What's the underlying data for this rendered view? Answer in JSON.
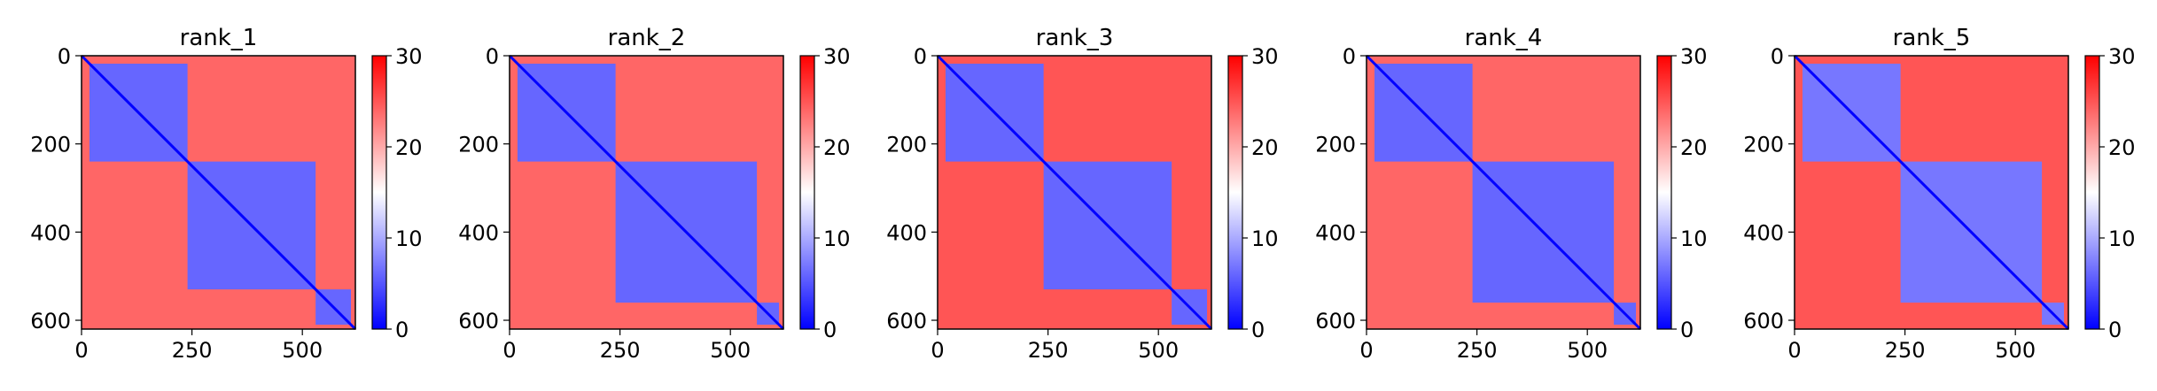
{
  "chart_data": [
    {
      "type": "heatmap",
      "title": "rank_1",
      "xlabel": "",
      "ylabel": "",
      "xlim": [
        0,
        620
      ],
      "ylim": [
        620,
        0
      ],
      "x_ticks": [
        0,
        250,
        500
      ],
      "y_ticks": [
        0,
        200,
        400,
        600
      ],
      "colorbar": {
        "ticks": [
          0,
          10,
          20,
          30
        ],
        "range": [
          0,
          30
        ]
      },
      "blocks": [
        [
          18,
          240
        ],
        [
          240,
          530
        ],
        [
          530,
          610
        ]
      ],
      "intra_block_value": 6,
      "inter_block_value": 24,
      "diagonal_value": 0
    },
    {
      "type": "heatmap",
      "title": "rank_2",
      "xlabel": "",
      "ylabel": "",
      "xlim": [
        0,
        620
      ],
      "ylim": [
        620,
        0
      ],
      "x_ticks": [
        0,
        250,
        500
      ],
      "y_ticks": [
        0,
        200,
        400,
        600
      ],
      "colorbar": {
        "ticks": [
          0,
          10,
          20,
          30
        ],
        "range": [
          0,
          30
        ]
      },
      "blocks": [
        [
          18,
          240
        ],
        [
          240,
          560
        ],
        [
          560,
          610
        ]
      ],
      "intra_block_value": 6,
      "inter_block_value": 24,
      "diagonal_value": 0
    },
    {
      "type": "heatmap",
      "title": "rank_3",
      "xlabel": "",
      "ylabel": "",
      "xlim": [
        0,
        620
      ],
      "ylim": [
        620,
        0
      ],
      "x_ticks": [
        0,
        250,
        500
      ],
      "y_ticks": [
        0,
        200,
        400,
        600
      ],
      "colorbar": {
        "ticks": [
          0,
          10,
          20,
          30
        ],
        "range": [
          0,
          30
        ]
      },
      "blocks": [
        [
          18,
          240
        ],
        [
          240,
          530
        ],
        [
          530,
          610
        ]
      ],
      "intra_block_value": 6,
      "inter_block_value": 25,
      "diagonal_value": 0
    },
    {
      "type": "heatmap",
      "title": "rank_4",
      "xlabel": "",
      "ylabel": "",
      "xlim": [
        0,
        620
      ],
      "ylim": [
        620,
        0
      ],
      "x_ticks": [
        0,
        250,
        500
      ],
      "y_ticks": [
        0,
        200,
        400,
        600
      ],
      "colorbar": {
        "ticks": [
          0,
          10,
          20,
          30
        ],
        "range": [
          0,
          30
        ]
      },
      "blocks": [
        [
          18,
          240
        ],
        [
          240,
          560
        ],
        [
          560,
          610
        ]
      ],
      "intra_block_value": 6,
      "inter_block_value": 24,
      "diagonal_value": 0
    },
    {
      "type": "heatmap",
      "title": "rank_5",
      "xlabel": "",
      "ylabel": "",
      "xlim": [
        0,
        620
      ],
      "ylim": [
        620,
        0
      ],
      "x_ticks": [
        0,
        250,
        500
      ],
      "y_ticks": [
        0,
        200,
        400,
        600
      ],
      "colorbar": {
        "ticks": [
          0,
          10,
          20,
          30
        ],
        "range": [
          0,
          30
        ]
      },
      "blocks": [
        [
          18,
          240
        ],
        [
          240,
          560
        ],
        [
          560,
          610
        ]
      ],
      "intra_block_value": 7,
      "inter_block_value": 25,
      "diagonal_value": 0
    }
  ],
  "colormap": {
    "name": "bwr",
    "low": "#0000ff",
    "mid": "#ffffff",
    "high": "#ff0000"
  }
}
